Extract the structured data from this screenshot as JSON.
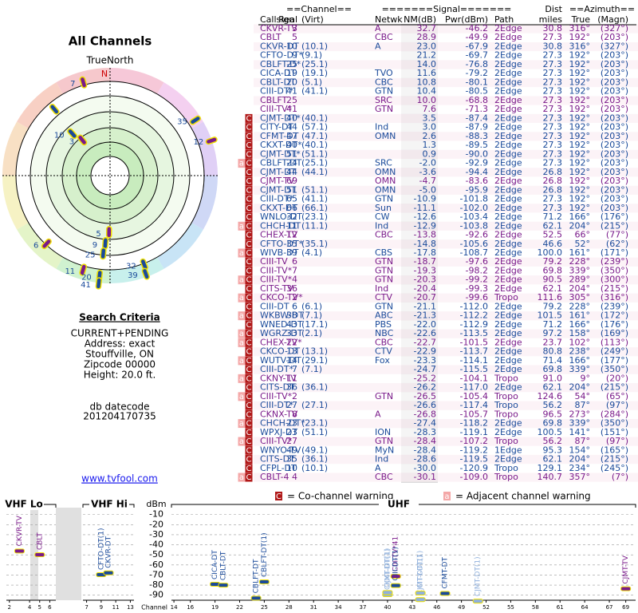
{
  "title": "All Channels",
  "north": "TrueNorth",
  "north_mark": "N",
  "search": {
    "title": "Search Criteria",
    "lines": [
      "CURRENT+PENDING",
      "Address: exact",
      "Stouffville, ON",
      "Zipcode 00000",
      "Height: 20.0 ft."
    ],
    "datecode_label": "db datecode",
    "datecode": "201204170735",
    "link": "www.tvfool.com"
  },
  "legend": {
    "co_mark": "C",
    "co_text": "= Co-channel warning",
    "adj_mark": "a",
    "adj_text": "= Adjacent channel warning"
  },
  "table": {
    "groups": [
      "==Channel==",
      "=======Signal=======",
      "Dist",
      "==Azimuth=="
    ],
    "columns": [
      "Callsign",
      "Real",
      "(Virt)",
      "Netwk",
      "NM(dB)",
      "Pwr(dBm)",
      "Path",
      "miles",
      "True",
      "(Magn)"
    ],
    "rows": [
      [
        "CKVR-TV",
        "3",
        null,
        "A",
        "32.7",
        "-46.2",
        "2Edge",
        "30.8",
        "316°",
        "(327°)"
      ],
      [
        "CBLT",
        "5",
        null,
        "CBC",
        "28.9",
        "-49.9",
        "2Edge",
        "27.3",
        "192°",
        "(203°)"
      ],
      [
        "CKVR-DT",
        "10",
        "(10.1)",
        "A",
        "23.0",
        "-67.9",
        "2Edge",
        "30.8",
        "316°",
        "(327°)"
      ],
      [
        "CFTO-DT*",
        "9",
        "(9.1)",
        null,
        "21.2",
        "-69.7",
        "2Edge",
        "27.3",
        "192°",
        "(203°)"
      ],
      [
        "CBLFT-D*",
        "25",
        "(25.1)",
        null,
        "14.0",
        "-76.8",
        "2Edge",
        "27.3",
        "192°",
        "(203°)"
      ],
      [
        "CICA-DT",
        "19",
        "(19.1)",
        "TVO",
        "11.6",
        "-79.2",
        "2Edge",
        "27.3",
        "192°",
        "(203°)"
      ],
      [
        "CBLT-DT",
        "20",
        "(5.1)",
        "CBC",
        "10.8",
        "-80.1",
        "2Edge",
        "27.3",
        "192°",
        "(203°)"
      ],
      [
        "CIII-DT*",
        "41",
        "(41.1)",
        "GTN",
        "10.4",
        "-80.5",
        "2Edge",
        "27.3",
        "192°",
        "(203°)"
      ],
      [
        "CBLFT",
        "25",
        null,
        "SRC",
        "10.0",
        "-68.8",
        "2Edge",
        "27.3",
        "192°",
        "(203°)"
      ],
      [
        "CIII-TV*",
        "41",
        null,
        "GTN",
        "7.6",
        "-71.3",
        "2Edge",
        "27.3",
        "192°",
        "(203°)"
      ],
      [
        "CJMT-DT*",
        "40",
        "(40.1)",
        null,
        "3.5",
        "-87.4",
        "2Edge",
        "27.3",
        "192°",
        "(203°)"
      ],
      [
        "CITY-DT",
        "44",
        "(57.1)",
        "Ind",
        "3.0",
        "-87.9",
        "2Edge",
        "27.3",
        "192°",
        "(203°)"
      ],
      [
        "CFMT-DT",
        "47",
        "(47.1)",
        "OMN",
        "2.6",
        "-88.3",
        "2Edge",
        "27.3",
        "192°",
        "(203°)"
      ],
      [
        "CKXT-DT*",
        "40",
        "(40.1)",
        null,
        "1.3",
        "-89.5",
        "2Edge",
        "27.3",
        "192°",
        "(203°)"
      ],
      [
        "CJMT-DT*",
        "51",
        "(51.1)",
        null,
        "0.9",
        "-90.0",
        "2Edge",
        "27.3",
        "192°",
        "(203°)"
      ],
      [
        "CBLFT-DT",
        "24",
        "(25.1)",
        "SRC",
        "-2.0",
        "-92.9",
        "2Edge",
        "27.3",
        "192°",
        "(203°)"
      ],
      [
        "CJMT-DT",
        "44",
        "(44.1)",
        "OMN",
        "-3.6",
        "-94.4",
        "2Edge",
        "26.8",
        "192°",
        "(203°)"
      ],
      [
        "CJMT-TV",
        "69",
        null,
        "OMN",
        "-4.7",
        "-83.6",
        "2Edge",
        "26.8",
        "192°",
        "(203°)"
      ],
      [
        "CJMT-DT",
        "51",
        "(51.1)",
        "OMN",
        "-5.0",
        "-95.9",
        "2Edge",
        "26.8",
        "192°",
        "(203°)"
      ],
      [
        "CIII-DT*",
        "65",
        "(41.1)",
        "GTN",
        "-10.9",
        "-101.8",
        "2Edge",
        "27.3",
        "192°",
        "(203°)"
      ],
      [
        "CKXT-DT",
        "66",
        "(66.1)",
        "Sun",
        "-11.1",
        "-102.0",
        "2Edge",
        "27.3",
        "192°",
        "(203°)"
      ],
      [
        "WNLO-DT",
        "32",
        "(23.1)",
        "CW",
        "-12.6",
        "-103.4",
        "2Edge",
        "71.2",
        "166°",
        "(176°)"
      ],
      [
        "CHCH-DT",
        "11",
        "(11.1)",
        "Ind",
        "-12.9",
        "-103.8",
        "2Edge",
        "62.1",
        "204°",
        "(215°)"
      ],
      [
        "CHEX-TV",
        "12",
        null,
        "CBC",
        "-13.8",
        "-92.6",
        "2Edge",
        "52.5",
        "66°",
        "(77°)"
      ],
      [
        "CFTO-DT*",
        "35",
        "(35.1)",
        null,
        "-14.8",
        "-105.6",
        "2Edge",
        "46.6",
        "52°",
        "(62°)"
      ],
      [
        "WIVB-DT",
        "39",
        "(4.1)",
        "CBS",
        "-17.8",
        "-108.7",
        "2Edge",
        "100.0",
        "161°",
        "(171°)"
      ],
      [
        "CIII-TV",
        "6",
        null,
        "GTN",
        "-18.7",
        "-97.6",
        "2Edge",
        "79.2",
        "228°",
        "(239°)"
      ],
      [
        "CIII-TV*",
        "7",
        null,
        "GTN",
        "-19.3",
        "-98.2",
        "2Edge",
        "69.8",
        "339°",
        "(350°)"
      ],
      [
        "CIII-TV*",
        "4",
        null,
        "GTN",
        "-20.3",
        "-99.2",
        "2Edge",
        "90.5",
        "289°",
        "(300°)"
      ],
      [
        "CITS-TV",
        "36",
        null,
        "Ind",
        "-20.4",
        "-99.3",
        "2Edge",
        "62.1",
        "204°",
        "(215°)"
      ],
      [
        "CKCO-TV*",
        "2",
        null,
        "CTV",
        "-20.7",
        "-99.6",
        "Tropo",
        "111.6",
        "305°",
        "(316°)"
      ],
      [
        "CIII-DT",
        "6",
        "(6.1)",
        "GTN",
        "-21.1",
        "-112.0",
        "2Edge",
        "79.2",
        "228°",
        "(239°)"
      ],
      [
        "WKBW-DT",
        "38",
        "(7.1)",
        "ABC",
        "-21.3",
        "-112.2",
        "2Edge",
        "101.5",
        "161°",
        "(172°)"
      ],
      [
        "WNED-DT",
        "43",
        "(17.1)",
        "PBS",
        "-22.0",
        "-112.9",
        "2Edge",
        "71.2",
        "166°",
        "(176°)"
      ],
      [
        "WGRZ-DT",
        "33",
        "(2.1)",
        "NBC",
        "-22.6",
        "-113.5",
        "2Edge",
        "97.2",
        "158°",
        "(169°)"
      ],
      [
        "CHEX-TV*",
        "22",
        null,
        "CBC",
        "-22.7",
        "-101.5",
        "2Edge",
        "23.7",
        "102°",
        "(113°)"
      ],
      [
        "CKCO-DT",
        "13",
        "(13.1)",
        "CTV",
        "-22.9",
        "-113.7",
        "2Edge",
        "80.8",
        "238°",
        "(249°)"
      ],
      [
        "WUTV-DT",
        "14",
        "(29.1)",
        "Fox",
        "-23.3",
        "-114.1",
        "2Edge",
        "71.4",
        "166°",
        "(177°)"
      ],
      [
        "CIII-DT*",
        "7",
        "(7.1)",
        null,
        "-24.7",
        "-115.5",
        "2Edge",
        "69.8",
        "339°",
        "(350°)"
      ],
      [
        "CKNY-TV",
        "11",
        null,
        null,
        "-25.2",
        "-104.1",
        "Tropo",
        "91.0",
        "9°",
        "(20°)"
      ],
      [
        "CITS-DT",
        "36",
        "(36.1)",
        null,
        "-26.2",
        "-117.0",
        "2Edge",
        "62.1",
        "204°",
        "(215°)"
      ],
      [
        "CIII-TV*",
        "2",
        null,
        "GTN",
        "-26.5",
        "-105.4",
        "Tropo",
        "124.6",
        "54°",
        "(65°)"
      ],
      [
        "CIII-DT*",
        "27",
        "(27.1)",
        null,
        "-26.6",
        "-117.4",
        "Tropo",
        "56.2",
        "87°",
        "(97°)"
      ],
      [
        "CKNX-TV",
        "8",
        null,
        "A",
        "-26.8",
        "-105.7",
        "Tropo",
        "96.5",
        "273°",
        "(284°)"
      ],
      [
        "CHCH-DT*",
        "23",
        "(23.1)",
        null,
        "-27.4",
        "-118.2",
        "2Edge",
        "69.8",
        "339°",
        "(350°)"
      ],
      [
        "WPXJ-DT",
        "23",
        "(51.1)",
        "ION",
        "-28.3",
        "-119.1",
        "2Edge",
        "100.5",
        "141°",
        "(151°)"
      ],
      [
        "CIII-TV*",
        "27",
        null,
        "GTN",
        "-28.4",
        "-107.2",
        "Tropo",
        "56.2",
        "87°",
        "(97°)"
      ],
      [
        "WNYO-TV",
        "49",
        "(49.1)",
        "MyN",
        "-28.4",
        "-119.2",
        "1Edge",
        "95.3",
        "154°",
        "(165°)"
      ],
      [
        "CITS-DT",
        "35",
        "(36.1)",
        "Ind",
        "-28.6",
        "-119.5",
        "2Edge",
        "62.1",
        "204°",
        "(215°)"
      ],
      [
        "CFPL-DT",
        "10",
        "(10.1)",
        "A",
        "-30.0",
        "-120.9",
        "Tropo",
        "129.1",
        "234°",
        "(245°)"
      ],
      [
        "CBLT-4",
        "4",
        null,
        "CBC",
        "-30.1",
        "-109.0",
        "Tropo",
        "140.7",
        "357°",
        "(7°)"
      ]
    ],
    "warnings": [
      null,
      null,
      null,
      null,
      null,
      null,
      null,
      null,
      null,
      null,
      [
        "C"
      ],
      [
        "C"
      ],
      [
        "C"
      ],
      [
        "C"
      ],
      [
        "C"
      ],
      [
        "a",
        "C"
      ],
      [
        "C"
      ],
      [
        "C"
      ],
      [
        "C"
      ],
      [
        "C"
      ],
      [
        "C"
      ],
      [
        "C"
      ],
      [
        "a",
        "C"
      ],
      [
        "C"
      ],
      [
        "C"
      ],
      [
        "a",
        "C"
      ],
      [
        "C"
      ],
      [
        "C"
      ],
      [
        "a",
        "C"
      ],
      [
        "C"
      ],
      [
        "a",
        "C"
      ],
      [
        "C"
      ],
      [
        "a",
        "C"
      ],
      [
        "C"
      ],
      [
        "a",
        "C"
      ],
      [
        "a",
        "C"
      ],
      [
        "C"
      ],
      [
        "a",
        "C"
      ],
      [
        "C"
      ],
      [
        "a",
        "C"
      ],
      [
        "C"
      ],
      [
        "a",
        "C"
      ],
      [
        "C"
      ],
      [
        "C"
      ],
      [
        "a",
        "C"
      ],
      [
        "C"
      ],
      [
        "a",
        "C"
      ],
      [
        "C"
      ],
      [
        "C"
      ],
      [
        "C"
      ],
      [
        "a",
        "C"
      ]
    ]
  },
  "chart_data": [
    {
      "type": "polar",
      "rlim": [
        0,
        100
      ],
      "labels": [
        "7",
        "10",
        null,
        "3",
        "35",
        "12",
        "6",
        "5",
        "9",
        "25",
        "11",
        "20",
        "41",
        "32",
        "39"
      ],
      "angles": [
        344,
        318,
        320,
        322,
        57,
        71,
        223,
        181,
        184,
        185,
        196,
        186,
        186,
        159,
        160
      ],
      "values": [
        103,
        60,
        92,
        48,
        108,
        114,
        99,
        60,
        72,
        83,
        104,
        107,
        115,
        101,
        111
      ],
      "colors": [
        "#7a1a8a",
        "#1a4a9a",
        "#1a4a9a",
        "#7a1a8a",
        "#1a4a9a",
        "#7a1a8a",
        "#7a1a8a",
        "#7a1a8a",
        "#1a4a9a",
        "#1a4a9a",
        "#7a1a8a",
        "#1a4a9a",
        "#1a4a9a",
        "#1a4a9a",
        "#1a4a9a"
      ]
    },
    {
      "type": "spectrum",
      "ylabel": "dBm",
      "xlabel": "Channel",
      "ylim": [
        -95,
        0
      ],
      "yticks": [
        -10,
        -20,
        -30,
        -40,
        -50,
        -60,
        -70,
        -80,
        -90
      ],
      "panels": [
        {
          "title": "VHF Lo",
          "xlim": [
            1.7,
            6.6
          ],
          "xticks": [
            2,
            4,
            5,
            6
          ]
        },
        {
          "title": "VHF Hi",
          "xlim": [
            6.5,
            13.5
          ],
          "xticks": [
            7,
            9,
            11,
            13
          ]
        },
        {
          "title": "UHF",
          "xlim": [
            13.7,
            70.2
          ],
          "xticks": [
            14,
            16,
            19,
            22,
            25,
            28,
            31,
            34,
            37,
            40,
            43,
            46,
            49,
            52,
            55,
            58,
            61,
            64,
            67,
            69
          ]
        }
      ],
      "x": [
        3,
        5,
        9,
        10,
        19,
        20,
        24,
        25,
        40,
        40,
        41,
        41,
        44,
        44,
        47,
        51,
        69
      ],
      "values": [
        -46.2,
        -49.9,
        -69.7,
        -67.9,
        -79.2,
        -80.1,
        -92.9,
        -76.8,
        -89.5,
        -87.4,
        -71.3,
        -80.5,
        -94.4,
        -87.9,
        -88.3,
        -95.9,
        -83.6
      ],
      "labels": [
        "CKVR-TV",
        "CBLT",
        "CFTO-DT(1)",
        "CKVR-DT",
        "CICA-DT",
        "CBLT-DT",
        "CBLFT-DT",
        "CBLFT-DT(1)",
        "CKXT-DT(1)",
        "CJMT-DT(1)",
        "CIII-TV*41",
        "CIII-DT(1)",
        "CJMT-DT(1)",
        "CITY-DT(1)",
        "CFMT-DT",
        "CJMT-DT(1)",
        "CJMT-TV"
      ],
      "colors": [
        "#7a1a8a",
        "#7a1a8a",
        "#1a4a9a",
        "#1a4a9a",
        "#1a4a9a",
        "#1a4a9a",
        "#1a4a9a",
        "#1a4a9a",
        "#8fb0dc",
        "#8fb0dc",
        "#7a1a8a",
        "#1a4a9a",
        "#8fb0dc",
        "#8fb0dc",
        "#1a4a9a",
        "#8fb0dc",
        "#7a1a8a"
      ]
    }
  ]
}
